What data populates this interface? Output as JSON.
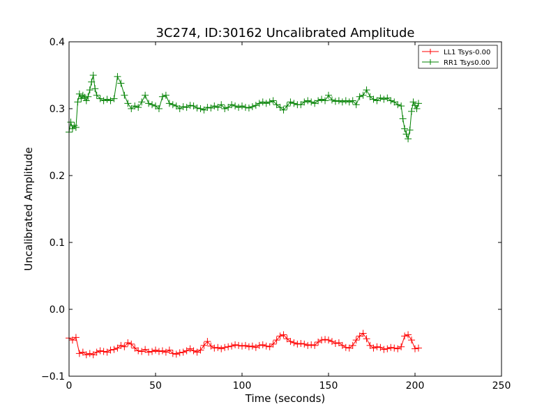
{
  "chart_data": {
    "type": "scatter",
    "title": "3C274, ID:30162 Uncalibrated Amplitude",
    "xlabel": "Time (seconds)",
    "ylabel": "Uncalibrated Amplitude",
    "xlim": [
      0,
      250
    ],
    "ylim": [
      -0.1,
      0.4
    ],
    "xticks": [
      0,
      50,
      100,
      150,
      200,
      250
    ],
    "xtick_labels": [
      "0",
      "50",
      "100",
      "150",
      "200",
      "250"
    ],
    "yticks": [
      -0.1,
      0.0,
      0.1,
      0.2,
      0.3,
      0.4
    ],
    "ytick_labels": [
      "−0.1",
      "0.0",
      "0.1",
      "0.2",
      "0.3",
      "0.4"
    ],
    "grid": false,
    "legend_position": "top-right",
    "marker": "plus",
    "series": [
      {
        "name": "LL1 Tsys-0.00",
        "color": "#ff0000",
        "points": [
          [
            0,
            -0.043
          ],
          [
            2,
            -0.046
          ],
          [
            4,
            -0.042
          ],
          [
            6,
            -0.066
          ],
          [
            8,
            -0.064
          ],
          [
            10,
            -0.068
          ],
          [
            12,
            -0.066
          ],
          [
            14,
            -0.068
          ],
          [
            16,
            -0.064
          ],
          [
            18,
            -0.062
          ],
          [
            20,
            -0.063
          ],
          [
            22,
            -0.064
          ],
          [
            24,
            -0.061
          ],
          [
            26,
            -0.06
          ],
          [
            28,
            -0.058
          ],
          [
            30,
            -0.054
          ],
          [
            32,
            -0.056
          ],
          [
            34,
            -0.05
          ],
          [
            36,
            -0.052
          ],
          [
            38,
            -0.058
          ],
          [
            40,
            -0.062
          ],
          [
            42,
            -0.063
          ],
          [
            44,
            -0.06
          ],
          [
            46,
            -0.064
          ],
          [
            48,
            -0.063
          ],
          [
            50,
            -0.061
          ],
          [
            52,
            -0.063
          ],
          [
            54,
            -0.062
          ],
          [
            56,
            -0.064
          ],
          [
            58,
            -0.061
          ],
          [
            60,
            -0.066
          ],
          [
            62,
            -0.067
          ],
          [
            64,
            -0.065
          ],
          [
            66,
            -0.064
          ],
          [
            68,
            -0.062
          ],
          [
            70,
            -0.059
          ],
          [
            72,
            -0.062
          ],
          [
            74,
            -0.064
          ],
          [
            76,
            -0.061
          ],
          [
            78,
            -0.054
          ],
          [
            80,
            -0.048
          ],
          [
            82,
            -0.055
          ],
          [
            84,
            -0.058
          ],
          [
            86,
            -0.057
          ],
          [
            88,
            -0.059
          ],
          [
            90,
            -0.057
          ],
          [
            92,
            -0.056
          ],
          [
            94,
            -0.055
          ],
          [
            96,
            -0.053
          ],
          [
            98,
            -0.054
          ],
          [
            100,
            -0.055
          ],
          [
            102,
            -0.054
          ],
          [
            104,
            -0.056
          ],
          [
            106,
            -0.055
          ],
          [
            108,
            -0.057
          ],
          [
            110,
            -0.054
          ],
          [
            112,
            -0.053
          ],
          [
            114,
            -0.055
          ],
          [
            116,
            -0.056
          ],
          [
            118,
            -0.052
          ],
          [
            120,
            -0.046
          ],
          [
            122,
            -0.04
          ],
          [
            124,
            -0.038
          ],
          [
            126,
            -0.044
          ],
          [
            128,
            -0.048
          ],
          [
            130,
            -0.05
          ],
          [
            132,
            -0.052
          ],
          [
            134,
            -0.051
          ],
          [
            136,
            -0.052
          ],
          [
            138,
            -0.054
          ],
          [
            140,
            -0.053
          ],
          [
            142,
            -0.054
          ],
          [
            144,
            -0.049
          ],
          [
            146,
            -0.046
          ],
          [
            148,
            -0.045
          ],
          [
            150,
            -0.046
          ],
          [
            152,
            -0.048
          ],
          [
            154,
            -0.051
          ],
          [
            156,
            -0.05
          ],
          [
            158,
            -0.054
          ],
          [
            160,
            -0.057
          ],
          [
            162,
            -0.058
          ],
          [
            164,
            -0.054
          ],
          [
            166,
            -0.046
          ],
          [
            168,
            -0.04
          ],
          [
            170,
            -0.036
          ],
          [
            172,
            -0.044
          ],
          [
            174,
            -0.054
          ],
          [
            176,
            -0.058
          ],
          [
            178,
            -0.056
          ],
          [
            180,
            -0.057
          ],
          [
            182,
            -0.06
          ],
          [
            184,
            -0.059
          ],
          [
            186,
            -0.057
          ],
          [
            188,
            -0.058
          ],
          [
            190,
            -0.059
          ],
          [
            192,
            -0.056
          ],
          [
            194,
            -0.04
          ],
          [
            196,
            -0.038
          ],
          [
            198,
            -0.046
          ],
          [
            200,
            -0.059
          ],
          [
            202,
            -0.058
          ]
        ]
      },
      {
        "name": "RR1 Tsys0.00",
        "color": "#008000",
        "points": [
          [
            0,
            0.265
          ],
          [
            1,
            0.28
          ],
          [
            2,
            0.27
          ],
          [
            3,
            0.275
          ],
          [
            4,
            0.272
          ],
          [
            5,
            0.31
          ],
          [
            6,
            0.322
          ],
          [
            7,
            0.315
          ],
          [
            8,
            0.32
          ],
          [
            9,
            0.317
          ],
          [
            10,
            0.312
          ],
          [
            11,
            0.318
          ],
          [
            12,
            0.328
          ],
          [
            13,
            0.34
          ],
          [
            14,
            0.35
          ],
          [
            15,
            0.33
          ],
          [
            16,
            0.32
          ],
          [
            18,
            0.315
          ],
          [
            20,
            0.312
          ],
          [
            22,
            0.314
          ],
          [
            24,
            0.312
          ],
          [
            26,
            0.315
          ],
          [
            28,
            0.348
          ],
          [
            30,
            0.338
          ],
          [
            32,
            0.32
          ],
          [
            34,
            0.308
          ],
          [
            36,
            0.3
          ],
          [
            38,
            0.304
          ],
          [
            40,
            0.302
          ],
          [
            42,
            0.31
          ],
          [
            44,
            0.32
          ],
          [
            46,
            0.308
          ],
          [
            48,
            0.306
          ],
          [
            50,
            0.304
          ],
          [
            52,
            0.3
          ],
          [
            54,
            0.318
          ],
          [
            56,
            0.32
          ],
          [
            58,
            0.308
          ],
          [
            60,
            0.306
          ],
          [
            62,
            0.304
          ],
          [
            64,
            0.3
          ],
          [
            66,
            0.303
          ],
          [
            68,
            0.302
          ],
          [
            70,
            0.305
          ],
          [
            72,
            0.304
          ],
          [
            74,
            0.301
          ],
          [
            76,
            0.3
          ],
          [
            78,
            0.298
          ],
          [
            80,
            0.302
          ],
          [
            82,
            0.301
          ],
          [
            84,
            0.304
          ],
          [
            86,
            0.302
          ],
          [
            88,
            0.306
          ],
          [
            90,
            0.3
          ],
          [
            92,
            0.302
          ],
          [
            94,
            0.306
          ],
          [
            96,
            0.304
          ],
          [
            98,
            0.302
          ],
          [
            100,
            0.304
          ],
          [
            102,
            0.302
          ],
          [
            104,
            0.301
          ],
          [
            106,
            0.303
          ],
          [
            108,
            0.305
          ],
          [
            110,
            0.308
          ],
          [
            112,
            0.31
          ],
          [
            114,
            0.308
          ],
          [
            116,
            0.31
          ],
          [
            118,
            0.312
          ],
          [
            120,
            0.306
          ],
          [
            122,
            0.302
          ],
          [
            124,
            0.298
          ],
          [
            126,
            0.304
          ],
          [
            128,
            0.31
          ],
          [
            130,
            0.308
          ],
          [
            132,
            0.306
          ],
          [
            134,
            0.306
          ],
          [
            136,
            0.31
          ],
          [
            138,
            0.312
          ],
          [
            140,
            0.31
          ],
          [
            142,
            0.308
          ],
          [
            144,
            0.312
          ],
          [
            146,
            0.314
          ],
          [
            148,
            0.312
          ],
          [
            150,
            0.32
          ],
          [
            152,
            0.313
          ],
          [
            154,
            0.311
          ],
          [
            156,
            0.312
          ],
          [
            158,
            0.31
          ],
          [
            160,
            0.312
          ],
          [
            162,
            0.31
          ],
          [
            164,
            0.312
          ],
          [
            166,
            0.306
          ],
          [
            168,
            0.318
          ],
          [
            170,
            0.32
          ],
          [
            172,
            0.328
          ],
          [
            174,
            0.318
          ],
          [
            176,
            0.314
          ],
          [
            178,
            0.312
          ],
          [
            180,
            0.316
          ],
          [
            182,
            0.314
          ],
          [
            184,
            0.316
          ],
          [
            186,
            0.312
          ],
          [
            188,
            0.31
          ],
          [
            190,
            0.306
          ],
          [
            192,
            0.304
          ],
          [
            193,
            0.285
          ],
          [
            194,
            0.27
          ],
          [
            195,
            0.262
          ],
          [
            196,
            0.255
          ],
          [
            197,
            0.268
          ],
          [
            198,
            0.296
          ],
          [
            199,
            0.31
          ],
          [
            200,
            0.305
          ],
          [
            201,
            0.3
          ],
          [
            202,
            0.308
          ]
        ]
      }
    ]
  }
}
